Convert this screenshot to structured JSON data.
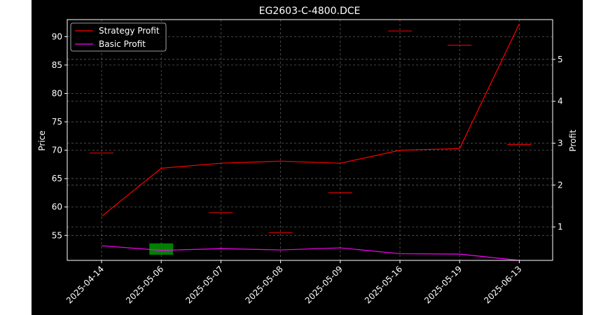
{
  "chart_data": {
    "type": "line",
    "title": "EG2603-C-4800.DCE",
    "ylabel_left": "Price",
    "ylabel_right": "Profit",
    "categories": [
      "2025-04-14",
      "2025-05-06",
      "2025-05-07",
      "2025-05-08",
      "2025-05-09",
      "2025-05-16",
      "2025-05-19",
      "2025-06-13"
    ],
    "left_axis": {
      "ylim": [
        50.6,
        93.0
      ],
      "ticks": [
        55,
        60,
        65,
        70,
        75,
        80,
        85,
        90
      ]
    },
    "right_axis": {
      "ylim": [
        0.2,
        5.95
      ],
      "ticks": [
        1,
        2,
        3,
        4,
        5
      ]
    },
    "candles": [
      {
        "category": "2025-04-14",
        "open": 69.5,
        "close": 69.5,
        "high": 69.5,
        "low": 69.5,
        "color": "#ff0000"
      },
      {
        "category": "2025-05-06",
        "open": 51.6,
        "close": 53.6,
        "high": 53.6,
        "low": 51.6,
        "color": "#008000"
      },
      {
        "category": "2025-05-07",
        "open": 59.0,
        "close": 59.0,
        "high": 59.0,
        "low": 59.0,
        "color": "#ff0000"
      },
      {
        "category": "2025-05-08",
        "open": 55.5,
        "close": 55.5,
        "high": 55.5,
        "low": 55.5,
        "color": "#ff0000"
      },
      {
        "category": "2025-05-09",
        "open": 62.5,
        "close": 62.5,
        "high": 62.5,
        "low": 62.5,
        "color": "#ff0000"
      },
      {
        "category": "2025-05-16",
        "open": 91.0,
        "close": 91.0,
        "high": 91.0,
        "low": 91.0,
        "color": "#ff0000"
      },
      {
        "category": "2025-05-19",
        "open": 88.5,
        "close": 88.5,
        "high": 88.5,
        "low": 88.5,
        "color": "#ff0000"
      },
      {
        "category": "2025-06-13",
        "open": 71.0,
        "close": 71.0,
        "high": 71.0,
        "low": 71.0,
        "color": "#ff0000"
      }
    ],
    "series": [
      {
        "name": "Strategy Profit",
        "axis": "right",
        "color": "#ff0000",
        "values": [
          1.25,
          2.4,
          2.52,
          2.57,
          2.52,
          2.83,
          2.87,
          5.85
        ]
      },
      {
        "name": "Basic Profit",
        "axis": "right",
        "color": "#ff00ff",
        "values": [
          0.55,
          0.44,
          0.48,
          0.45,
          0.5,
          0.36,
          0.35,
          0.2
        ]
      }
    ],
    "grid": true,
    "legend": "top-left"
  }
}
